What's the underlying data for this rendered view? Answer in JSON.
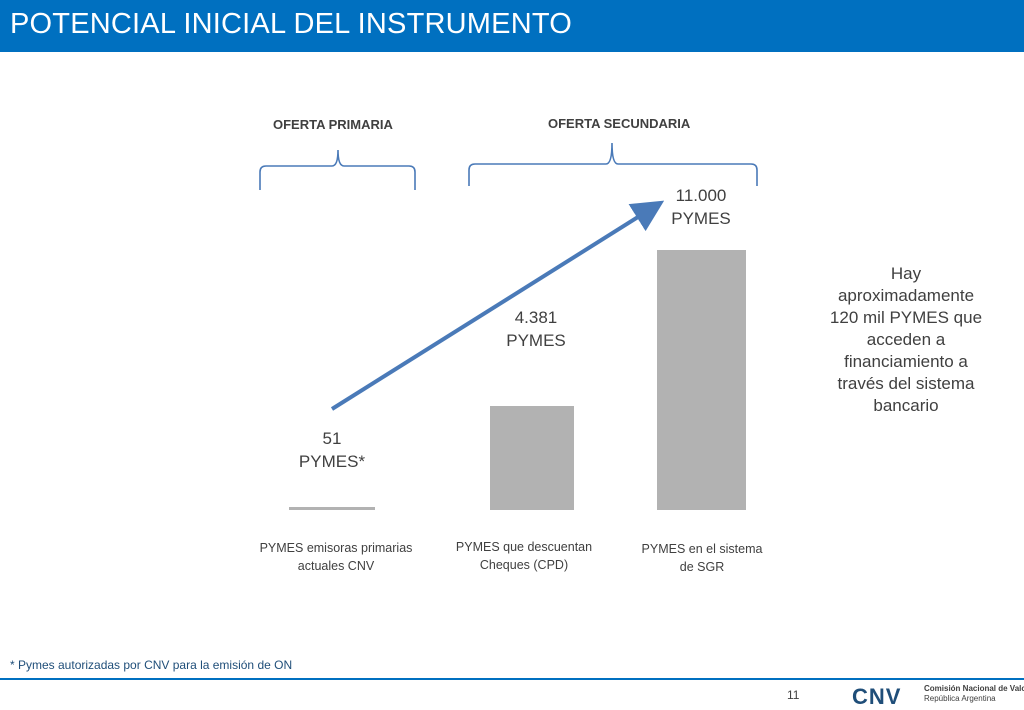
{
  "title": "POTENCIAL INICIAL DEL INSTRUMENTO",
  "groups": {
    "primary": "OFERTA PRIMARIA",
    "secondary": "OFERTA SECUNDARIA"
  },
  "chart_data": {
    "type": "bar",
    "categories": [
      "PYMES emisoras primarias actuales CNV",
      "PYMES que descuentan Cheques (CPD)",
      "PYMES en el sistema de SGR"
    ],
    "values": [
      51,
      4381,
      11000
    ],
    "data_labels": [
      {
        "value": "51",
        "unit": "PYMES*"
      },
      {
        "value": "4.381",
        "unit": "PYMES"
      },
      {
        "value": "11.000",
        "unit": "PYMES"
      }
    ],
    "ylim": [
      0,
      11000
    ],
    "colors": {
      "bar": "#b2b2b2",
      "arrow": "#4a7ab8"
    }
  },
  "side_note": "Hay aproximadamente 120 mil PYMES que acceden a financiamiento a través del sistema bancario",
  "footnote": "* Pymes autorizadas por CNV para la emisión de ON",
  "page_number": "11",
  "logo": {
    "mark": "CNV",
    "line1": "Comisión Nacional de Valores",
    "line2": "República Argentina"
  },
  "colors": {
    "title_bar": "#0070c0",
    "text": "#404040"
  }
}
